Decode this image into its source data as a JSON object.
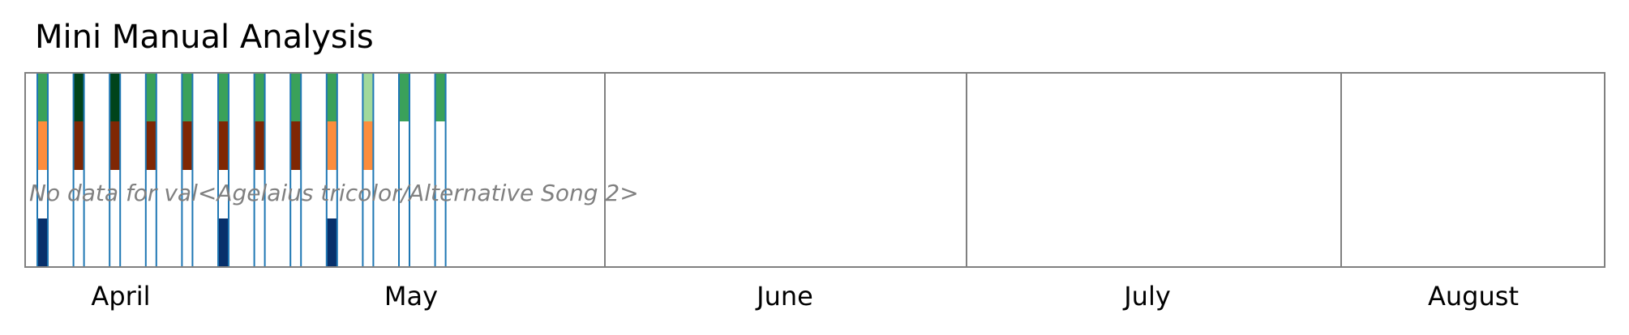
{
  "chart_data": {
    "type": "bar",
    "title": "Mini Manual Analysis",
    "x_months": [
      "April",
      "May",
      "June",
      "July",
      "August"
    ],
    "no_data_message": "No data for val<Agelaius tricolor/Alternative Song 2>",
    "row_count": 4,
    "colors": {
      "outline": "#1f77b4",
      "frame": "#808080",
      "green": "#3aa15a",
      "dark_green": "#00441b",
      "light_green": "#a1d99b",
      "orange": "#fd8d3c",
      "dark_red": "#7f2704",
      "navy": "#08306b",
      "empty": "#ffffff"
    },
    "columns": [
      {
        "rows": [
          "green",
          "orange",
          "empty",
          "navy"
        ]
      },
      {
        "rows": [
          "dark_green",
          "dark_red",
          "empty",
          "empty"
        ]
      },
      {
        "rows": [
          "dark_green",
          "dark_red",
          "empty",
          "empty"
        ]
      },
      {
        "rows": [
          "green",
          "dark_red",
          "empty",
          "empty"
        ]
      },
      {
        "rows": [
          "green",
          "dark_red",
          "empty",
          "empty"
        ]
      },
      {
        "rows": [
          "green",
          "dark_red",
          "empty",
          "navy"
        ]
      },
      {
        "rows": [
          "green",
          "dark_red",
          "empty",
          "empty"
        ]
      },
      {
        "rows": [
          "green",
          "dark_red",
          "empty",
          "empty"
        ]
      },
      {
        "rows": [
          "green",
          "orange",
          "empty",
          "navy"
        ]
      },
      {
        "rows": [
          "light_green",
          "orange",
          "empty",
          "empty"
        ]
      },
      {
        "rows": [
          "green",
          "empty",
          "empty",
          "empty"
        ]
      },
      {
        "rows": [
          "green",
          "empty",
          "empty",
          "empty"
        ]
      }
    ]
  }
}
